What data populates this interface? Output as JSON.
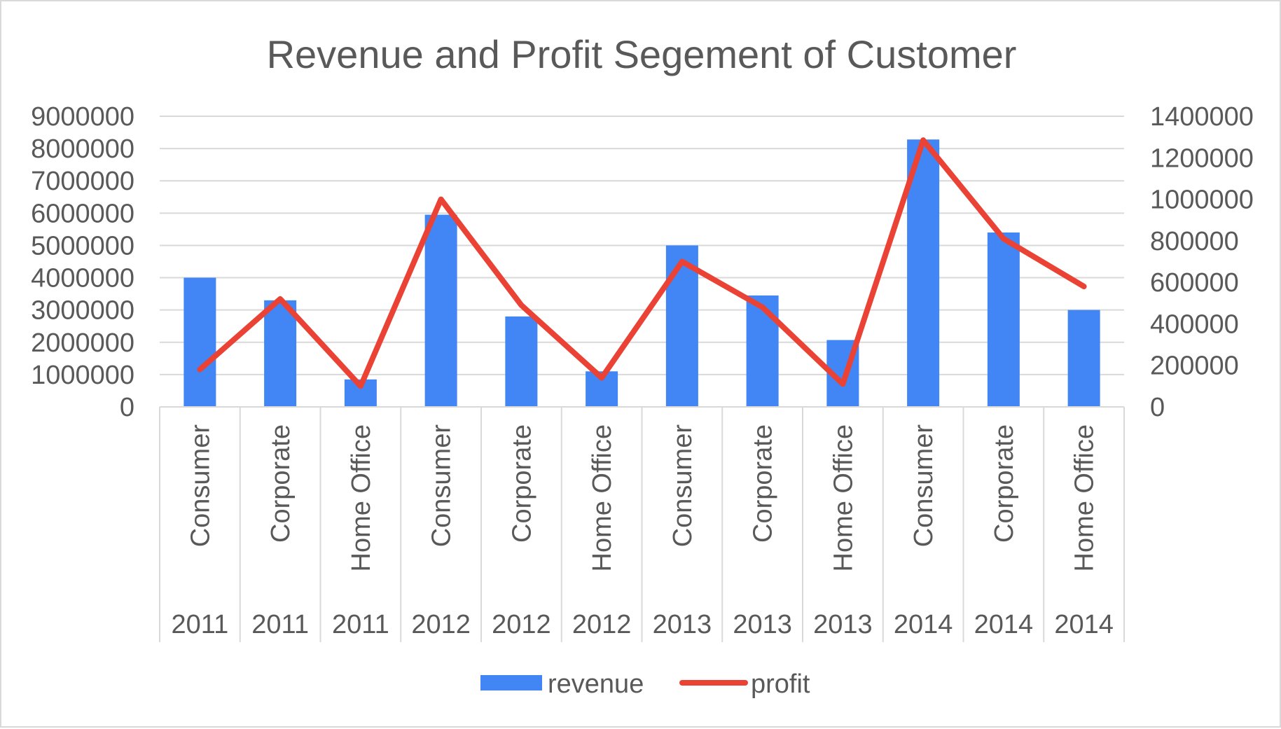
{
  "chart_data": {
    "type": "bar",
    "title": "Revenue and Profit Segement of Customer",
    "xlabel": "",
    "ylabel": "",
    "categories": [
      {
        "segment": "Consumer",
        "year": "2011"
      },
      {
        "segment": "Corporate",
        "year": "2011"
      },
      {
        "segment": "Home Office",
        "year": "2011"
      },
      {
        "segment": "Consumer",
        "year": "2012"
      },
      {
        "segment": "Corporate",
        "year": "2012"
      },
      {
        "segment": "Home Office",
        "year": "2012"
      },
      {
        "segment": "Consumer",
        "year": "2013"
      },
      {
        "segment": "Corporate",
        "year": "2013"
      },
      {
        "segment": "Home Office",
        "year": "2013"
      },
      {
        "segment": "Consumer",
        "year": "2014"
      },
      {
        "segment": "Corporate",
        "year": "2014"
      },
      {
        "segment": "Home Office",
        "year": "2014"
      }
    ],
    "series": [
      {
        "name": "revenue",
        "type": "bar",
        "axis": "left",
        "color": "#4285f4",
        "values": [
          4000000,
          3300000,
          850000,
          5950000,
          2800000,
          1100000,
          5000000,
          3450000,
          2070000,
          8280000,
          5400000,
          3000000
        ]
      },
      {
        "name": "profit",
        "type": "line",
        "axis": "right",
        "color": "#ea4335",
        "values": [
          180000,
          520000,
          100000,
          1000000,
          490000,
          140000,
          700000,
          480000,
          110000,
          1285000,
          810000,
          580000
        ]
      }
    ],
    "y_left": {
      "ylim": [
        0,
        9000000
      ],
      "ticks": [
        "0",
        "1000000",
        "2000000",
        "3000000",
        "4000000",
        "5000000",
        "6000000",
        "7000000",
        "8000000",
        "9000000"
      ]
    },
    "y_right": {
      "ylim": [
        0,
        1400000
      ],
      "ticks": [
        "0",
        "200000",
        "400000",
        "600000",
        "800000",
        "1000000",
        "1200000",
        "1400000"
      ]
    },
    "grid": true,
    "legend_position": "bottom"
  }
}
